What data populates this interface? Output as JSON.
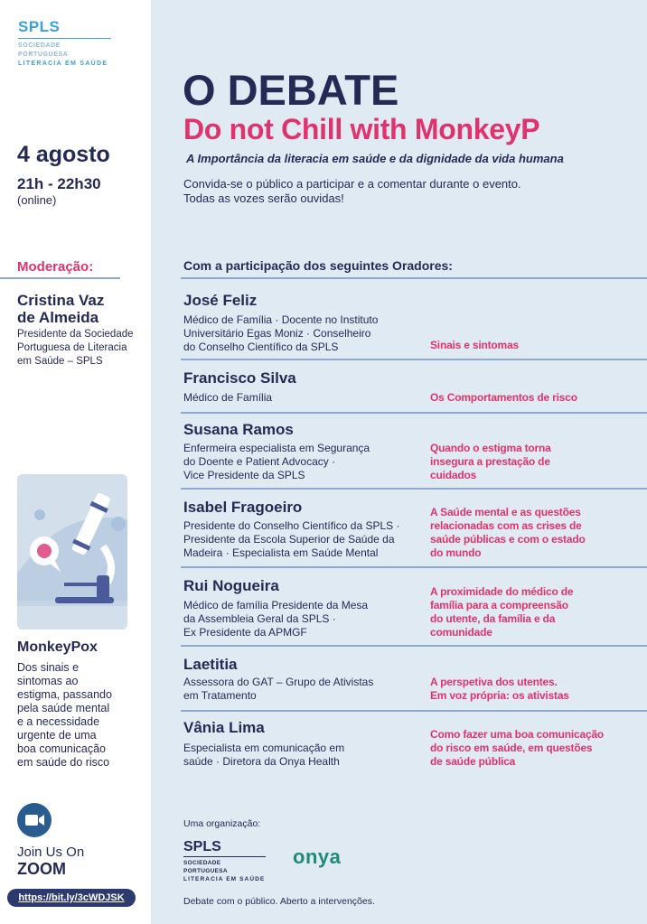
{
  "left": {
    "logo": {
      "title": "SPLS",
      "line1": "SOCIEDADE PORTUGUESA",
      "line2": "LITERACIA EM SAÚDE"
    },
    "date": "4 agosto",
    "time": "21h - 22h30",
    "mode": "(online)",
    "moderation_label": "Moderação:",
    "moderator": {
      "name_line1": "Cristina Vaz",
      "name_line2": "de Almeida",
      "desc": [
        "Presidente da Sociedade",
        "Portuguesa de Literacia",
        "em Saúde – SPLS"
      ]
    },
    "topic_title": "MonkeyPox",
    "topic_desc": [
      "Dos sinais e",
      "sintomas ao",
      "estigma, passando",
      "pela saúde mental",
      "e a necessidade",
      "urgente de uma",
      "boa comunicação",
      "em saúde do risco"
    ],
    "join_line1": "Join Us On",
    "join_line2": "ZOOM",
    "link": "https://bit.ly/3cWDJSK"
  },
  "main": {
    "title": "O DEBATE",
    "subtitle": "Do not Chill with MonkeyP",
    "tagline": "A Importância da literacia em saúde e da dignidade da vida humana",
    "intro": [
      "Convida-se o público a participar e a comentar durante o evento.",
      "Todas as vozes serão ouvidas!"
    ],
    "speakers_header": "Com a participação dos seguintes Oradores:",
    "speakers": [
      {
        "name": "José Feliz",
        "desc": [
          "Médico de Família  ·  Docente no Instituto",
          "Universitário Egas Moniz ·  Conselheiro",
          "do Conselho Científico da SPLS"
        ],
        "topic": [
          "Sinais e sintomas"
        ]
      },
      {
        "name": "Francisco Silva",
        "desc": [
          "Médico de Família"
        ],
        "topic": [
          "Os Comportamentos de risco"
        ]
      },
      {
        "name": "Susana Ramos",
        "desc": [
          "Enfermeira especialista em Segurança",
          "do Doente e Patient Advocacy  ·",
          "Vice Presidente da SPLS"
        ],
        "topic": [
          "Quando o estigma torna",
          "insegura a prestação de",
          "cuidados"
        ]
      },
      {
        "name": "Isabel Fragoeiro",
        "desc": [
          "Presidente do Conselho Científico da SPLS ·",
          "Presidente da Escola Superior de Saúde da",
          "Madeira  ·  Especialista em Saúde Mental"
        ],
        "topic": [
          "A Saúde mental e as questões",
          "relacionadas com as crises de",
          "saúde públicas e com o estado",
          "do mundo"
        ]
      },
      {
        "name": "Rui Nogueira",
        "desc": [
          "Médico de família Presidente da Mesa",
          "da Assembleia Geral da SPLS ·",
          "Ex Presidente da APMGF"
        ],
        "topic": [
          "A proximidade do médico de",
          "família para a compreensão",
          "do utente, da família e da",
          "comunidade"
        ]
      },
      {
        "name": "Laetitia",
        "desc": [
          "Assessora do GAT – Grupo de Ativistas",
          "em Tratamento"
        ],
        "topic": [
          "A perspetiva dos utentes.",
          "Em voz própria: os ativistas"
        ]
      },
      {
        "name": "Vânia Lima",
        "desc": [
          "Especialista em comunicação em",
          "saúde  ·  Diretora da Onya Health"
        ],
        "topic": [
          "Como fazer uma boa comunicação",
          "do risco em saúde, em questões",
          "de saúde pública"
        ]
      }
    ],
    "org_label": "Uma organização:",
    "org_logo": {
      "title": "SPLS",
      "line1": "SOCIEDADE PORTUGUESA",
      "line2": "LITERACIA EM SAÚDE"
    },
    "partner_logo": "onya",
    "footer": "Debate com o público. Aberto a intervenções."
  },
  "colors": {
    "navy": "#252a55",
    "pink": "#e0336e",
    "spls_blue": "#3aa0d8",
    "background": "#e0eaf3",
    "onya_teal": "#1e8b78",
    "zoom_blue": "#2a5d8f"
  }
}
